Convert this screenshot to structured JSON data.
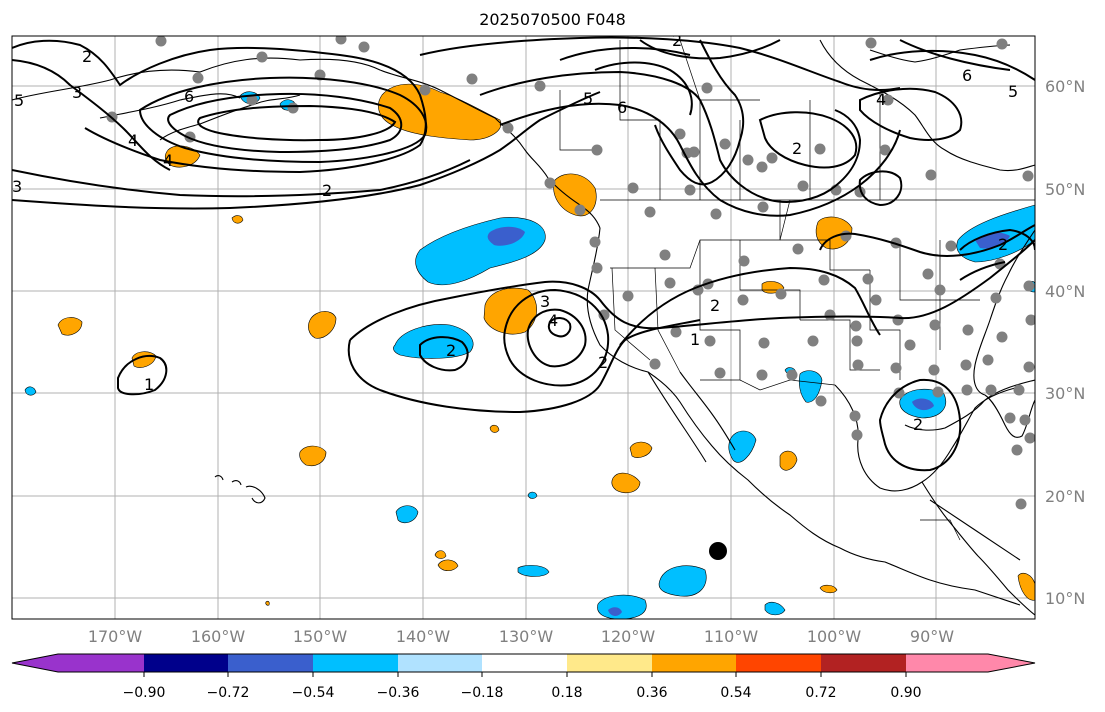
{
  "title": "2025070500 F048",
  "lat_labels": [
    "60°N",
    "50°N",
    "40°N",
    "30°N",
    "20°N",
    "10°N"
  ],
  "lon_labels": [
    "170°W",
    "160°W",
    "150°W",
    "140°W",
    "130°W",
    "120°W",
    "110°W",
    "100°W",
    "90°W"
  ],
  "colorbar": {
    "tick_labels": [
      "−0.90",
      "−0.72",
      "−0.54",
      "−0.36",
      "−0.18",
      "0.18",
      "0.36",
      "0.54",
      "0.72",
      "0.90"
    ],
    "colors": [
      "#9933cc",
      "#00008b",
      "#3a5fcd",
      "#00bfff",
      "#b0e2ff",
      "#ffffff",
      "#ffe98a",
      "#ffa500",
      "#ff4500",
      "#b22222",
      "#ff88aa"
    ]
  },
  "contour_labels": [
    "2",
    "3",
    "4",
    "5",
    "6",
    "2",
    "4",
    "3",
    "2",
    "5",
    "6",
    "2",
    "6",
    "5",
    "4",
    "2",
    "3",
    "2",
    "4",
    "2",
    "1",
    "2",
    "2",
    "1"
  ],
  "colors": {
    "positive_fill": "#ffa500",
    "negative_fill": "#00bfff",
    "strong_negative_fill": "#3a5fcd",
    "station_dot": "#808080",
    "contour": "#000000",
    "grid": "#b0b0b0"
  }
}
